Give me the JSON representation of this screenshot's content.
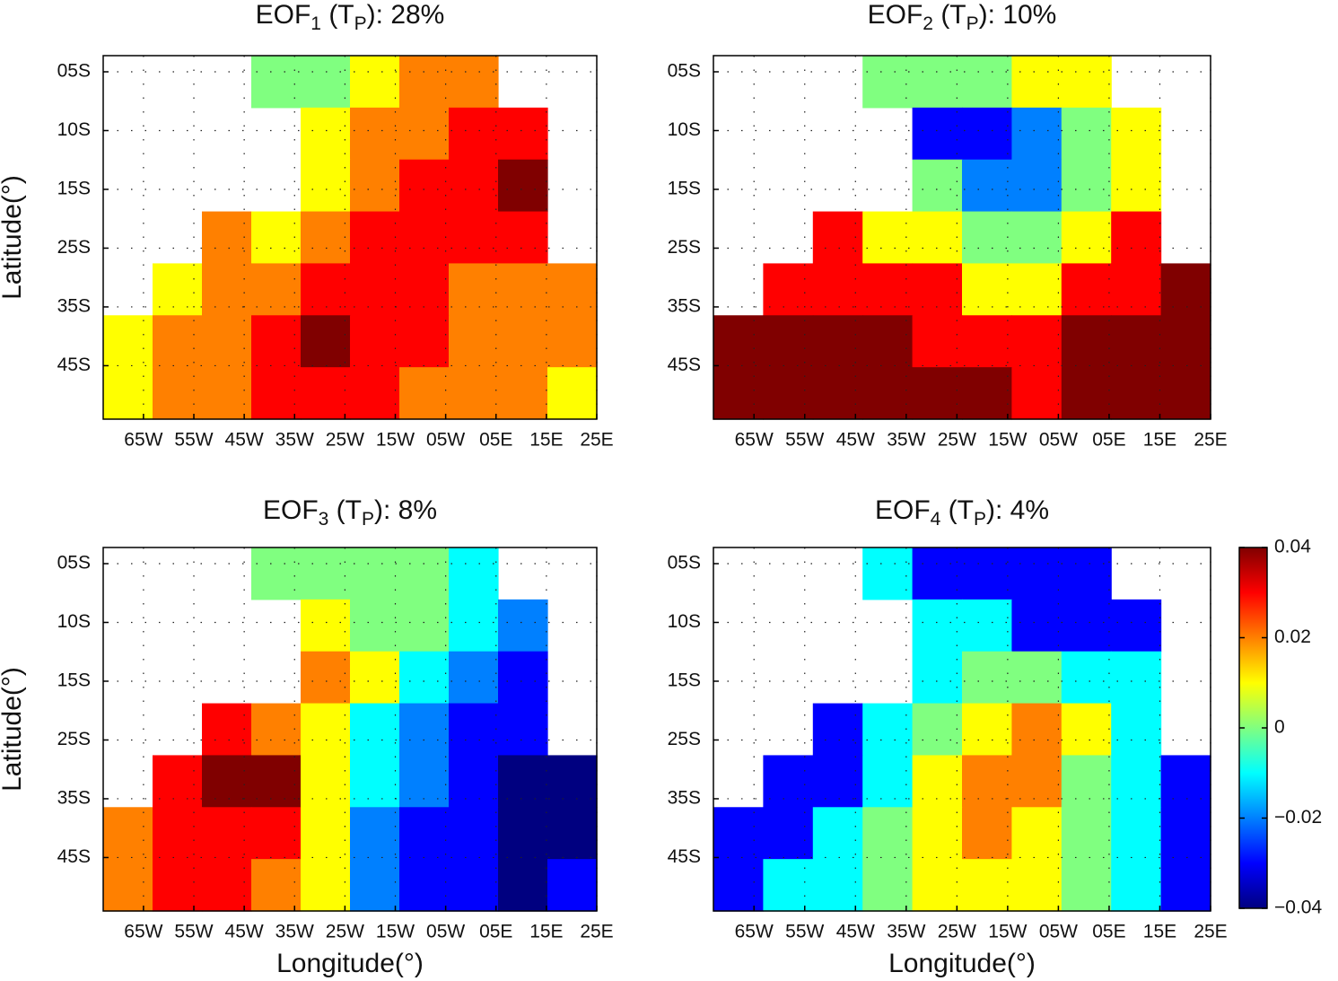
{
  "chart_data": [
    {
      "type": "contour",
      "title": [
        "EOF",
        "1",
        " (T",
        "P",
        "): 28%"
      ],
      "ylabel": "Latitude(°)",
      "xlim": [
        -73,
        25
      ],
      "grid": true,
      "xticks": [
        {
          "value": -65,
          "label": "65W"
        },
        {
          "value": -55,
          "label": "55W"
        },
        {
          "value": -45,
          "label": "45W"
        },
        {
          "value": -35,
          "label": "35W"
        },
        {
          "value": -25,
          "label": "25W"
        },
        {
          "value": -15,
          "label": "15W"
        },
        {
          "value": -5,
          "label": "05W"
        },
        {
          "value": 5,
          "label": "05E"
        },
        {
          "value": 15,
          "label": "15E"
        },
        {
          "value": 25,
          "label": "25E"
        }
      ],
      "ycategories": [
        "05S",
        "10S",
        "15S",
        "25S",
        "35S",
        "45S"
      ],
      "z": [
        [
          null,
          null,
          null,
          0.0,
          0.0,
          0.01,
          0.02,
          0.02,
          null,
          null
        ],
        [
          null,
          null,
          null,
          null,
          0.01,
          0.02,
          0.02,
          0.03,
          0.03,
          null
        ],
        [
          null,
          null,
          null,
          null,
          0.01,
          0.02,
          0.03,
          0.03,
          0.04,
          null
        ],
        [
          null,
          null,
          0.02,
          0.01,
          0.02,
          0.03,
          0.03,
          0.03,
          0.03,
          null
        ],
        [
          null,
          0.01,
          0.02,
          0.02,
          0.03,
          0.03,
          0.03,
          0.02,
          0.02,
          0.02
        ],
        [
          0.01,
          0.02,
          0.02,
          0.03,
          0.04,
          0.03,
          0.03,
          0.02,
          0.02,
          0.02
        ],
        [
          0.01,
          0.02,
          0.02,
          0.03,
          0.03,
          0.03,
          0.02,
          0.02,
          0.02,
          0.01
        ]
      ]
    },
    {
      "type": "contour",
      "title": [
        "EOF",
        "2",
        " (T",
        "P",
        "): 10%"
      ],
      "xlim": [
        -73,
        25
      ],
      "grid": true,
      "xticks": [
        {
          "value": -65,
          "label": "65W"
        },
        {
          "value": -55,
          "label": "55W"
        },
        {
          "value": -45,
          "label": "45W"
        },
        {
          "value": -35,
          "label": "35W"
        },
        {
          "value": -25,
          "label": "25W"
        },
        {
          "value": -15,
          "label": "15W"
        },
        {
          "value": -5,
          "label": "05W"
        },
        {
          "value": 5,
          "label": "05E"
        },
        {
          "value": 15,
          "label": "15E"
        },
        {
          "value": 25,
          "label": "25E"
        }
      ],
      "ycategories": [
        "05S",
        "10S",
        "15S",
        "25S",
        "35S",
        "45S"
      ],
      "z": [
        [
          null,
          null,
          null,
          0.0,
          0.0,
          0.0,
          0.01,
          0.01,
          null,
          null
        ],
        [
          null,
          null,
          null,
          null,
          -0.03,
          -0.03,
          -0.02,
          0.0,
          0.01,
          null
        ],
        [
          null,
          null,
          null,
          null,
          0.0,
          -0.02,
          -0.02,
          0.0,
          0.01,
          null
        ],
        [
          null,
          null,
          0.03,
          0.01,
          0.01,
          0.0,
          0.0,
          0.01,
          0.03,
          null
        ],
        [
          null,
          0.03,
          0.03,
          0.03,
          0.03,
          0.01,
          0.01,
          0.03,
          0.03,
          0.04
        ],
        [
          0.04,
          0.04,
          0.04,
          0.04,
          0.03,
          0.03,
          0.03,
          0.04,
          0.04,
          0.04
        ],
        [
          0.04,
          0.04,
          0.04,
          0.04,
          0.04,
          0.04,
          0.03,
          0.04,
          0.04,
          0.04
        ]
      ]
    },
    {
      "type": "contour",
      "title": [
        "EOF",
        "3",
        " (T",
        "P",
        "): 8%"
      ],
      "ylabel": "Latitude(°)",
      "xlabel": "Longitude(°)",
      "xlim": [
        -73,
        25
      ],
      "grid": true,
      "xticks": [
        {
          "value": -65,
          "label": "65W"
        },
        {
          "value": -55,
          "label": "55W"
        },
        {
          "value": -45,
          "label": "45W"
        },
        {
          "value": -35,
          "label": "35W"
        },
        {
          "value": -25,
          "label": "25W"
        },
        {
          "value": -15,
          "label": "15W"
        },
        {
          "value": -5,
          "label": "05W"
        },
        {
          "value": 5,
          "label": "05E"
        },
        {
          "value": 15,
          "label": "15E"
        },
        {
          "value": 25,
          "label": "25E"
        }
      ],
      "ycategories": [
        "05S",
        "10S",
        "15S",
        "25S",
        "35S",
        "45S"
      ],
      "z": [
        [
          null,
          null,
          null,
          0.0,
          0.0,
          0.0,
          0.0,
          -0.01,
          null,
          null
        ],
        [
          null,
          null,
          null,
          null,
          0.01,
          0.0,
          0.0,
          -0.01,
          -0.02,
          null
        ],
        [
          null,
          null,
          null,
          null,
          0.02,
          0.01,
          -0.01,
          -0.02,
          -0.03,
          null
        ],
        [
          null,
          null,
          0.03,
          0.02,
          0.01,
          -0.01,
          -0.02,
          -0.03,
          -0.03,
          null
        ],
        [
          null,
          0.03,
          0.04,
          0.04,
          0.01,
          -0.01,
          -0.02,
          -0.03,
          -0.04,
          -0.04
        ],
        [
          0.02,
          0.03,
          0.03,
          0.03,
          0.01,
          -0.02,
          -0.03,
          -0.03,
          -0.04,
          -0.04
        ],
        [
          0.02,
          0.03,
          0.03,
          0.02,
          0.01,
          -0.02,
          -0.03,
          -0.03,
          -0.04,
          -0.03
        ]
      ]
    },
    {
      "type": "contour",
      "title": [
        "EOF",
        "4",
        " (T",
        "P",
        "): 4%"
      ],
      "xlabel": "Longitude(°)",
      "xlim": [
        -73,
        25
      ],
      "grid": true,
      "xticks": [
        {
          "value": -65,
          "label": "65W"
        },
        {
          "value": -55,
          "label": "55W"
        },
        {
          "value": -45,
          "label": "45W"
        },
        {
          "value": -35,
          "label": "35W"
        },
        {
          "value": -25,
          "label": "25W"
        },
        {
          "value": -15,
          "label": "15W"
        },
        {
          "value": -5,
          "label": "05W"
        },
        {
          "value": 5,
          "label": "05E"
        },
        {
          "value": 15,
          "label": "15E"
        },
        {
          "value": 25,
          "label": "25E"
        }
      ],
      "ycategories": [
        "05S",
        "10S",
        "15S",
        "25S",
        "35S",
        "45S"
      ],
      "z": [
        [
          null,
          null,
          null,
          -0.01,
          -0.03,
          -0.03,
          -0.03,
          -0.03,
          null,
          null
        ],
        [
          null,
          null,
          null,
          null,
          -0.01,
          -0.01,
          -0.03,
          -0.03,
          -0.03,
          null
        ],
        [
          null,
          null,
          null,
          null,
          -0.01,
          0.0,
          0.0,
          -0.01,
          -0.01,
          null
        ],
        [
          null,
          null,
          -0.03,
          -0.01,
          0.0,
          0.01,
          0.02,
          0.01,
          -0.01,
          null
        ],
        [
          null,
          -0.03,
          -0.03,
          -0.01,
          0.01,
          0.02,
          0.02,
          0.0,
          -0.01,
          -0.03
        ],
        [
          -0.03,
          -0.03,
          -0.01,
          0.0,
          0.01,
          0.02,
          0.01,
          0.0,
          -0.01,
          -0.03
        ],
        [
          -0.03,
          -0.01,
          -0.01,
          0.0,
          0.01,
          0.01,
          0.01,
          0.0,
          -0.01,
          -0.03
        ]
      ]
    }
  ],
  "colorbar": {
    "clim": [
      -0.04,
      0.04
    ],
    "ticks": [
      0.04,
      0.02,
      0,
      {
        "value": -0.02,
        "label": "−0.02"
      },
      {
        "value": -0.04,
        "label": "−0.04"
      }
    ]
  }
}
